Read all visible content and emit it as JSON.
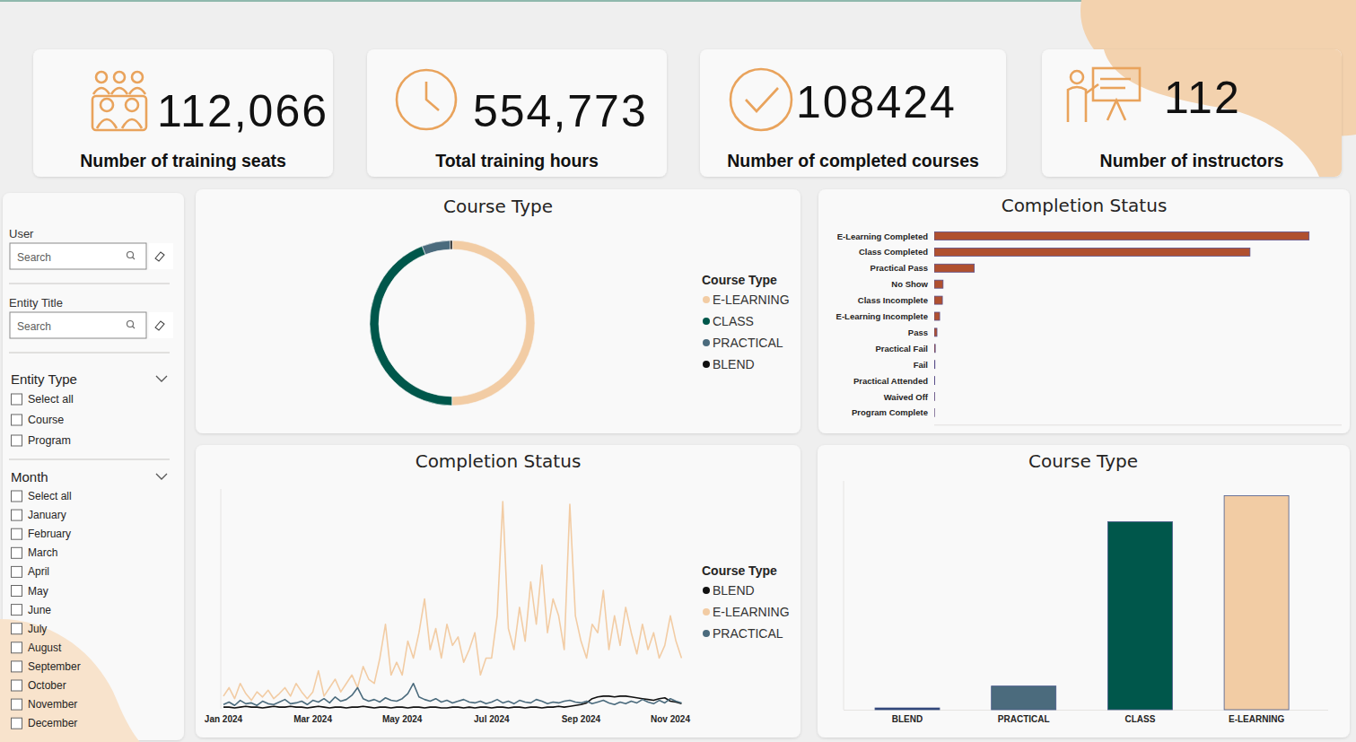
{
  "kpis": [
    {
      "value": "112,066",
      "label": "Number of training seats"
    },
    {
      "value": "554,773",
      "label": "Total training hours"
    },
    {
      "value": "108424",
      "label": "Number of completed courses"
    },
    {
      "value": "112",
      "label": "Number of instructors"
    }
  ],
  "filters": {
    "user": {
      "label": "User",
      "placeholder": "Search"
    },
    "entity_title": {
      "label": "Entity Title",
      "placeholder": "Search"
    },
    "entity_type": {
      "label": "Entity Type",
      "options": [
        "Select all",
        "Course",
        "Program"
      ]
    },
    "month": {
      "label": "Month",
      "options": [
        "Select all",
        "January",
        "February",
        "March",
        "April",
        "May",
        "June",
        "July",
        "August",
        "September",
        "October",
        "November",
        "December"
      ]
    }
  },
  "chart_data": [
    {
      "type": "pie",
      "title": "Course Type",
      "legend_title": "Course Type",
      "legend": "right",
      "categories": [
        "E-LEARNING",
        "CLASS",
        "PRACTICAL",
        "BLEND"
      ],
      "values": [
        56100,
        49300,
        6200,
        466
      ],
      "colors": [
        "#f2cca4",
        "#00574b",
        "#4b6b7d",
        "#111111"
      ]
    },
    {
      "type": "bar",
      "orientation": "horizontal",
      "title": "Completion Status",
      "tick_labels": "y",
      "categories": [
        "E-Learning Completed",
        "Class Completed",
        "Practical Pass",
        "No Show",
        "Class Incomplete",
        "E-Learning Incomplete",
        "Pass",
        "Practical Fail",
        "Fail",
        "Practical Attended",
        "Waived Off",
        "Program Complete"
      ],
      "values": [
        55200,
        46500,
        5900,
        1300,
        1200,
        800,
        400,
        150,
        100,
        80,
        60,
        30
      ],
      "color": "#b0502f",
      "xlim": [
        0,
        60000
      ],
      "xticks": []
    },
    {
      "type": "line",
      "title": "Completion Status",
      "legend_title": "Course Type",
      "legend": "right",
      "tick_labels": "x",
      "ylim": [
        0,
        1300
      ],
      "yticks": [],
      "categories": [
        "Jan 2024",
        null,
        null,
        null,
        null,
        null,
        null,
        null,
        null,
        null,
        null,
        null,
        null,
        null,
        null,
        null,
        "Mar 2024",
        null,
        null,
        null,
        null,
        null,
        null,
        null,
        null,
        null,
        null,
        null,
        null,
        null,
        null,
        null,
        "May 2024",
        null,
        null,
        null,
        null,
        null,
        null,
        null,
        null,
        null,
        null,
        null,
        null,
        null,
        null,
        null,
        "Jul 2024",
        null,
        null,
        null,
        null,
        null,
        null,
        null,
        null,
        null,
        null,
        null,
        null,
        null,
        null,
        null,
        "Sep 2024",
        null,
        null,
        null,
        null,
        null,
        null,
        null,
        null,
        null,
        null,
        null,
        null,
        null,
        null,
        null,
        "Nov 2024",
        null,
        null
      ],
      "series": [
        {
          "name": "BLEND",
          "color": "#111111",
          "values": [
            10,
            10,
            5,
            10,
            15,
            10,
            10,
            5,
            10,
            15,
            10,
            10,
            15,
            10,
            10,
            5,
            10,
            15,
            10,
            5,
            10,
            10,
            5,
            10,
            10,
            15,
            10,
            5,
            10,
            10,
            5,
            10,
            10,
            5,
            10,
            10,
            5,
            10,
            10,
            5,
            5,
            10,
            10,
            5,
            10,
            5,
            10,
            10,
            5,
            10,
            10,
            5,
            10,
            10,
            5,
            10,
            10,
            5,
            10,
            10,
            15,
            10,
            15,
            20,
            25,
            35,
            60,
            70,
            75,
            75,
            70,
            75,
            75,
            70,
            65,
            60,
            55,
            50,
            60,
            65,
            45,
            40,
            30
          ]
        },
        {
          "name": "E-LEARNING",
          "color": "#f2cca4",
          "values": [
            75,
            125,
            60,
            150,
            90,
            50,
            100,
            70,
            110,
            60,
            90,
            125,
            75,
            150,
            100,
            60,
            100,
            225,
            75,
            125,
            175,
            100,
            150,
            200,
            125,
            250,
            175,
            150,
            300,
            500,
            200,
            275,
            200,
            400,
            300,
            450,
            650,
            350,
            475,
            300,
            500,
            375,
            425,
            275,
            350,
            450,
            200,
            300,
            300,
            550,
            1225,
            475,
            350,
            600,
            400,
            750,
            500,
            850,
            450,
            650,
            550,
            350,
            1210,
            550,
            400,
            300,
            500,
            450,
            700,
            350,
            550,
            375,
            600,
            450,
            325,
            500,
            350,
            450,
            300,
            375,
            550,
            400,
            300
          ]
        },
        {
          "name": "PRACTICAL",
          "color": "#4b6b7d",
          "values": [
            25,
            40,
            20,
            50,
            30,
            35,
            20,
            45,
            30,
            25,
            40,
            55,
            30,
            35,
            45,
            25,
            50,
            40,
            60,
            35,
            70,
            45,
            55,
            80,
            125,
            60,
            45,
            55,
            40,
            65,
            50,
            45,
            60,
            90,
            150,
            70,
            55,
            45,
            60,
            40,
            50,
            35,
            45,
            55,
            40,
            35,
            45,
            30,
            40,
            55,
            35,
            45,
            30,
            50,
            40,
            35,
            55,
            45,
            30,
            40,
            35,
            45,
            50,
            40,
            35,
            45,
            30,
            40,
            50,
            35,
            25,
            40,
            30,
            45,
            35,
            55,
            40,
            30,
            50,
            35,
            60,
            45,
            35
          ]
        }
      ]
    },
    {
      "type": "bar",
      "title": "Course Type",
      "tick_labels": "x",
      "categories": [
        "BLEND",
        "PRACTICAL",
        "CLASS",
        "E-LEARNING"
      ],
      "values": [
        466,
        6200,
        49300,
        56100
      ],
      "colors": [
        "#1f3a6e",
        "#4b6b7d",
        "#00574b",
        "#f2cca4"
      ],
      "ylim": [
        0,
        60000
      ],
      "yticks": []
    }
  ]
}
